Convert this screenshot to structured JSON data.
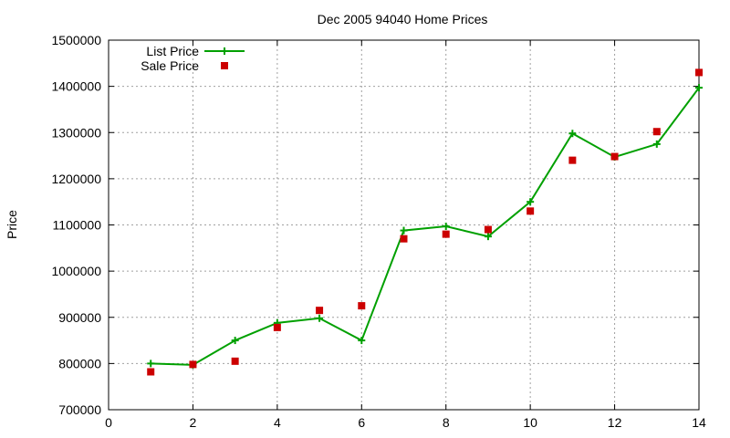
{
  "chart_data": {
    "type": "line",
    "title": "Dec 2005 94040 Home Prices",
    "xlabel": "",
    "ylabel": "Price",
    "xlim": [
      0,
      14
    ],
    "ylim": [
      700000,
      1500000
    ],
    "x_ticks": [
      0,
      2,
      4,
      6,
      8,
      10,
      12,
      14
    ],
    "y_ticks": [
      700000,
      800000,
      900000,
      1000000,
      1100000,
      1200000,
      1300000,
      1400000,
      1500000
    ],
    "grid": true,
    "legend_position": "top-left",
    "x": [
      1,
      2,
      3,
      4,
      5,
      6,
      7,
      8,
      9,
      10,
      11,
      12,
      13,
      14
    ],
    "series": [
      {
        "name": "List Price",
        "style": "linespoints",
        "marker": "plus",
        "color": "#00a000",
        "values": [
          800000,
          797000,
          850000,
          888000,
          898000,
          850000,
          1088000,
          1097000,
          1075000,
          1150000,
          1298000,
          1247000,
          1275000,
          1397000
        ]
      },
      {
        "name": "Sale Price",
        "style": "points",
        "marker": "square",
        "color": "#cc0000",
        "values": [
          782000,
          798000,
          805000,
          878000,
          915000,
          925000,
          1070000,
          1080000,
          1090000,
          1130000,
          1240000,
          1248000,
          1302000,
          1430000
        ]
      }
    ]
  }
}
